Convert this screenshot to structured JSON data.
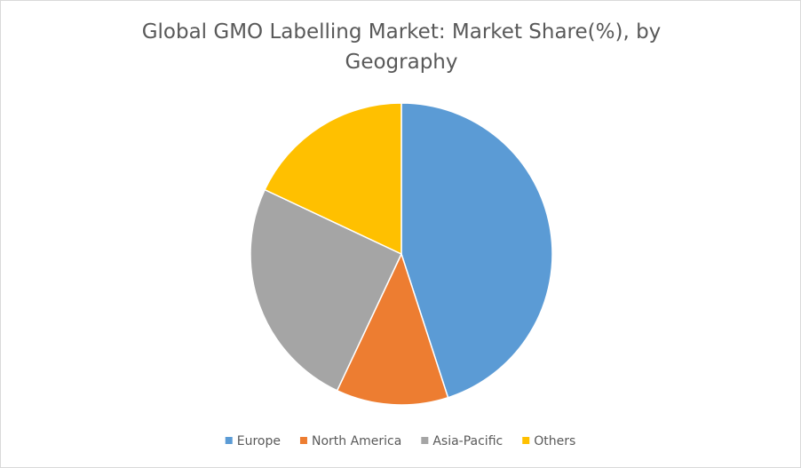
{
  "chart_data": {
    "type": "pie",
    "title": "Global GMO Labelling Market: Market Share(%), by Geography",
    "categories": [
      "Europe",
      "North America",
      "Asia-Pacific",
      "Others"
    ],
    "values": [
      45,
      12,
      25,
      18
    ],
    "colors": [
      "#5b9bd5",
      "#ed7d31",
      "#a5a5a5",
      "#ffc000"
    ],
    "legend": "bottom"
  }
}
